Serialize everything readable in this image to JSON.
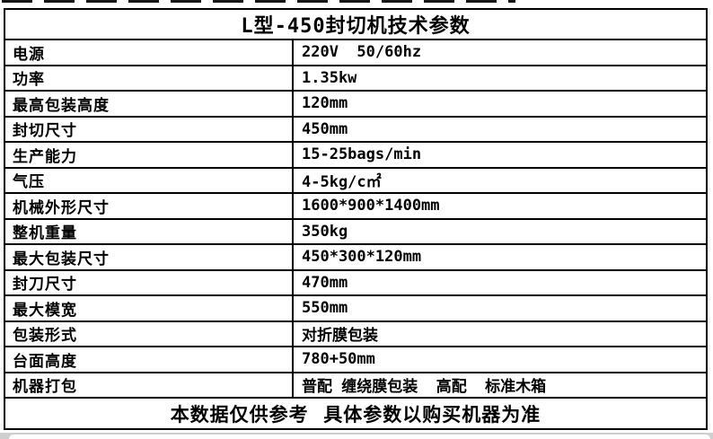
{
  "page": {
    "background": "#ffffff",
    "border_color": "#000000",
    "text_color": "#000000",
    "bottom_bar_color": "#cfcfcf"
  },
  "table": {
    "title": "L型-450封切机技术参数",
    "rows": [
      {
        "label": "电源",
        "value": "220V  50/60hz"
      },
      {
        "label": "功率",
        "value": "1.35kw"
      },
      {
        "label": "最高包装高度",
        "value": "120mm"
      },
      {
        "label": "封切尺寸",
        "value": "450mm"
      },
      {
        "label": "生产能力",
        "value": "15-25bags/min"
      },
      {
        "label": "气压",
        "value": "4-5kg/c㎡"
      },
      {
        "label": "机械外形尺寸",
        "value": "1600*900*1400mm"
      },
      {
        "label": "整机重量",
        "value": "350kg"
      },
      {
        "label": "最大包装尺寸",
        "value": "450*300*120mm"
      },
      {
        "label": "封刀尺寸",
        "value": "470mm"
      },
      {
        "label": "最大模宽",
        "value": "550mm"
      },
      {
        "label": "包装形式",
        "value": "对折膜包装"
      },
      {
        "label": "台面高度",
        "value": "780+50mm"
      },
      {
        "label": "机器打包",
        "value": "普配 缠绕膜包装  高配  标准木箱"
      }
    ],
    "footer": "本数据仅供参考  具体参数以购买机器为准"
  }
}
